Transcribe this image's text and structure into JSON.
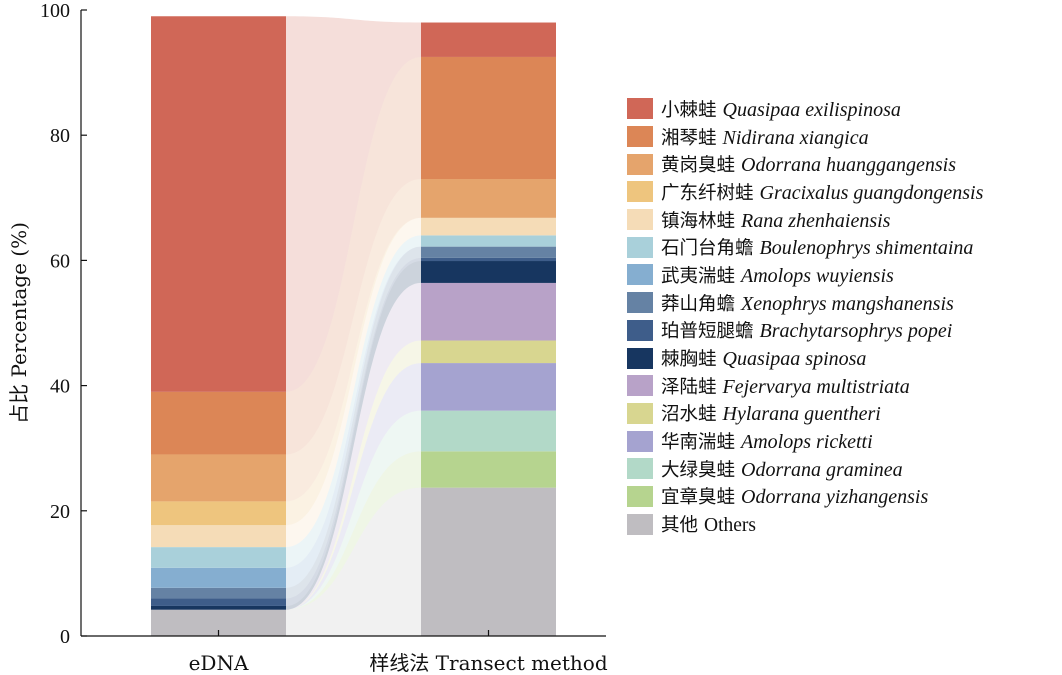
{
  "chart_data": {
    "type": "bar",
    "stacked": true,
    "percent": true,
    "title": "",
    "ylabel": "占比 Percentage (%)",
    "xlabel": "",
    "ylim": [
      0,
      100
    ],
    "yticks": [
      0,
      20,
      40,
      60,
      80,
      100
    ],
    "grid": false,
    "legend": "right",
    "categories": [
      "eDNA",
      "样线法 Transect method"
    ],
    "series": [
      {
        "name_zh": "小棘蛙",
        "name_sci": "Quasipaa exilispinosa",
        "color": "#d06757",
        "values": [
          60.0,
          5.5
        ]
      },
      {
        "name_zh": "湘琴蛙",
        "name_sci": "Nidirana xiangica",
        "color": "#dc8656",
        "values": [
          10.0,
          19.5
        ]
      },
      {
        "name_zh": "黄岗臭蛙",
        "name_sci": "Odorrana huanggangensis",
        "color": "#e5a46c",
        "values": [
          7.5,
          6.2
        ]
      },
      {
        "name_zh": "广东纤树蛙",
        "name_sci": "Gracixalus guangdongensis",
        "color": "#eec57e",
        "values": [
          3.8,
          0.0
        ]
      },
      {
        "name_zh": "镇海林蛙",
        "name_sci": "Rana zhenhaiensis",
        "color": "#f5dcb7",
        "values": [
          3.5,
          2.8
        ]
      },
      {
        "name_zh": "石门台角蟾",
        "name_sci": "Boulenophrys shimentaina",
        "color": "#a9d0da",
        "values": [
          3.3,
          1.8
        ]
      },
      {
        "name_zh": "武夷湍蛙",
        "name_sci": "Amolops wuyiensis",
        "color": "#85aed0",
        "values": [
          3.2,
          0.0
        ]
      },
      {
        "name_zh": "莽山角蟾",
        "name_sci": "Xenophrys mangshanensis",
        "color": "#6582a4",
        "values": [
          1.7,
          1.8
        ]
      },
      {
        "name_zh": "珀普短腿蟾",
        "name_sci": "Brachytarsophrys popei",
        "color": "#3e5d8a",
        "values": [
          1.2,
          0.5
        ]
      },
      {
        "name_zh": "棘胸蛙",
        "name_sci": "Quasipaa spinosa",
        "color": "#173660",
        "values": [
          0.6,
          3.5
        ]
      },
      {
        "name_zh": "泽陆蛙",
        "name_sci": "Fejervarya multistriata",
        "color": "#b8a2c8",
        "values": [
          0.0,
          9.2
        ]
      },
      {
        "name_zh": "沼水蛙",
        "name_sci": "Hylarana guentheri",
        "color": "#d8d690",
        "values": [
          0.0,
          3.6
        ]
      },
      {
        "name_zh": "华南湍蛙",
        "name_sci": "Amolops ricketti",
        "color": "#a5a3d0",
        "values": [
          0.0,
          7.6
        ]
      },
      {
        "name_zh": "大绿臭蛙",
        "name_sci": "Odorrana graminea",
        "color": "#b2d9c8",
        "values": [
          0.0,
          6.5
        ]
      },
      {
        "name_zh": "宜章臭蛙",
        "name_sci": "Odorrana yizhangensis",
        "color": "#b6d48f",
        "values": [
          0.0,
          5.8
        ]
      },
      {
        "name_zh": "其他",
        "name_sci": "Others",
        "color": "#bfbdc1",
        "values": [
          4.2,
          23.7
        ]
      }
    ]
  }
}
